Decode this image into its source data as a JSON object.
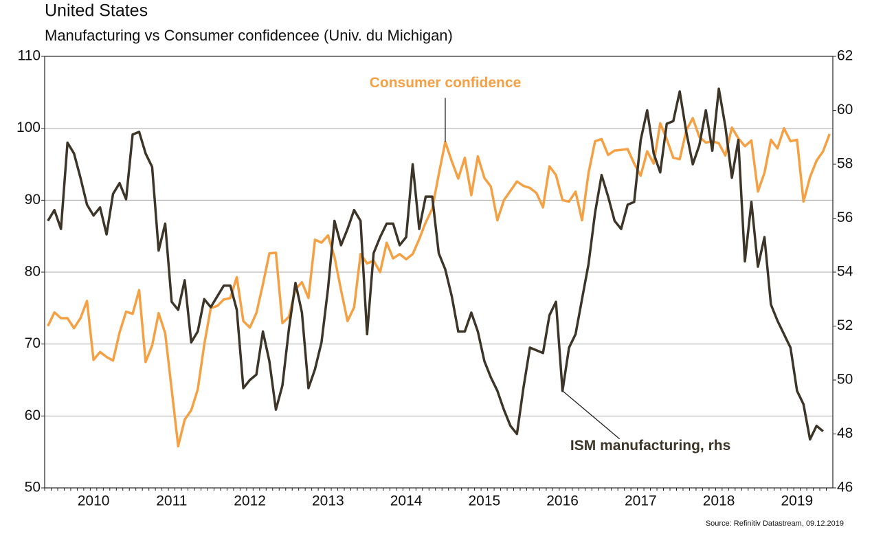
{
  "chart_data": {
    "type": "line",
    "title": "United States",
    "subtitle": "Manufacturing vs Consumer confidencee (Univ. du Michigan)",
    "source": "Source: Refinitiv Datastream, 09.12.2019",
    "categories": [
      null,
      null,
      null,
      null,
      null,
      null,
      null,
      "2010",
      null,
      null,
      null,
      null,
      null,
      null,
      null,
      null,
      null,
      null,
      null,
      "2011",
      null,
      null,
      null,
      null,
      null,
      null,
      null,
      null,
      null,
      null,
      null,
      "2012",
      null,
      null,
      null,
      null,
      null,
      null,
      null,
      null,
      null,
      null,
      null,
      "2013",
      null,
      null,
      null,
      null,
      null,
      null,
      null,
      null,
      null,
      null,
      null,
      "2014",
      null,
      null,
      null,
      null,
      null,
      null,
      null,
      null,
      null,
      null,
      null,
      "2015",
      null,
      null,
      null,
      null,
      null,
      null,
      null,
      null,
      null,
      null,
      null,
      "2016",
      null,
      null,
      null,
      null,
      null,
      null,
      null,
      null,
      null,
      null,
      null,
      "2017",
      null,
      null,
      null,
      null,
      null,
      null,
      null,
      null,
      null,
      null,
      null,
      "2018",
      null,
      null,
      null,
      null,
      null,
      null,
      null,
      null,
      null,
      null,
      null,
      "2019",
      null,
      null,
      null,
      null,
      null
    ],
    "series": [
      {
        "name": "Consumer confidence",
        "color": "#f4a043",
        "axis": "y",
        "values": [
          72.5,
          74.4,
          73.6,
          73.6,
          72.2,
          73.6,
          76.0,
          67.8,
          68.9,
          68.2,
          67.7,
          71.6,
          74.5,
          74.2,
          77.5,
          67.5,
          69.8,
          74.3,
          71.5,
          63.7,
          55.8,
          59.5,
          60.8,
          63.7,
          69.9,
          75.0,
          75.3,
          76.2,
          76.4,
          79.3,
          73.2,
          72.3,
          74.3,
          78.3,
          82.6,
          82.7,
          72.9,
          73.8,
          77.6,
          78.6,
          76.4,
          84.5,
          84.1,
          85.1,
          82.1,
          77.5,
          73.2,
          75.1,
          82.5,
          81.2,
          81.6,
          80.0,
          84.1,
          81.9,
          82.5,
          81.8,
          82.5,
          84.6,
          86.9,
          88.8,
          93.6,
          98.1,
          95.4,
          93.0,
          95.9,
          90.7,
          96.1,
          93.1,
          91.9,
          87.2,
          90.0,
          91.3,
          92.6,
          92.0,
          91.7,
          91.0,
          89.0,
          94.7,
          93.5,
          90.0,
          89.8,
          91.2,
          87.2,
          93.8,
          98.2,
          98.5,
          96.3,
          96.9,
          97.0,
          97.1,
          95.1,
          93.4,
          96.8,
          95.1,
          100.7,
          98.5,
          95.9,
          95.7,
          99.7,
          101.4,
          98.8,
          98.0,
          98.2,
          97.9,
          96.2,
          100.1,
          98.6,
          97.5,
          98.3,
          91.2,
          93.8,
          98.4,
          97.2,
          100.0,
          98.2,
          98.4,
          89.8,
          93.2,
          95.5,
          96.8,
          99.2
        ]
      },
      {
        "name": "ISM manufacturing, rhs",
        "color": "#3d3528",
        "axis": "y2",
        "values": [
          55.9,
          56.3,
          55.6,
          58.8,
          58.4,
          57.5,
          56.5,
          56.1,
          56.4,
          55.4,
          56.9,
          57.3,
          56.7,
          59.1,
          59.2,
          58.4,
          57.9,
          54.8,
          55.8,
          52.9,
          52.6,
          53.7,
          51.4,
          51.8,
          53.0,
          52.7,
          53.1,
          53.5,
          53.5,
          52.6,
          49.7,
          50.0,
          50.2,
          51.8,
          50.7,
          48.9,
          49.8,
          51.9,
          53.6,
          52.5,
          49.7,
          50.4,
          51.4,
          53.4,
          55.9,
          55.0,
          55.6,
          56.3,
          55.9,
          51.7,
          54.7,
          55.3,
          55.8,
          55.8,
          55.0,
          55.3,
          58.0,
          55.6,
          56.8,
          56.8,
          54.7,
          54.1,
          53.1,
          51.8,
          51.8,
          52.5,
          51.8,
          50.7,
          50.1,
          49.6,
          48.9,
          48.3,
          48.0,
          49.7,
          51.2,
          51.1,
          51.0,
          52.4,
          52.9,
          49.6,
          51.2,
          51.7,
          53.0,
          54.3,
          56.2,
          57.6,
          56.8,
          55.9,
          55.6,
          56.5,
          56.6,
          58.9,
          60.0,
          58.4,
          57.7,
          59.5,
          59.6,
          60.7,
          59.2,
          58.0,
          58.7,
          60.0,
          58.5,
          60.8,
          59.4,
          57.5,
          58.9,
          54.4,
          56.6,
          54.2,
          55.3,
          52.8,
          52.2,
          51.7,
          51.2,
          49.6,
          49.1,
          47.8,
          48.3,
          48.1,
          null
        ]
      }
    ],
    "annotations": [
      {
        "text": "Consumer confidence",
        "series": 0,
        "index": 61
      },
      {
        "text": "ISM manufacturing, rhs",
        "series": 1,
        "index": 79
      }
    ],
    "ylim": [
      50,
      110
    ],
    "yticks": [
      50,
      60,
      70,
      80,
      90,
      100,
      110
    ],
    "y2lim": [
      46,
      62
    ],
    "y2ticks": [
      46,
      48,
      50,
      52,
      54,
      56,
      58,
      60,
      62
    ],
    "grid": true
  }
}
